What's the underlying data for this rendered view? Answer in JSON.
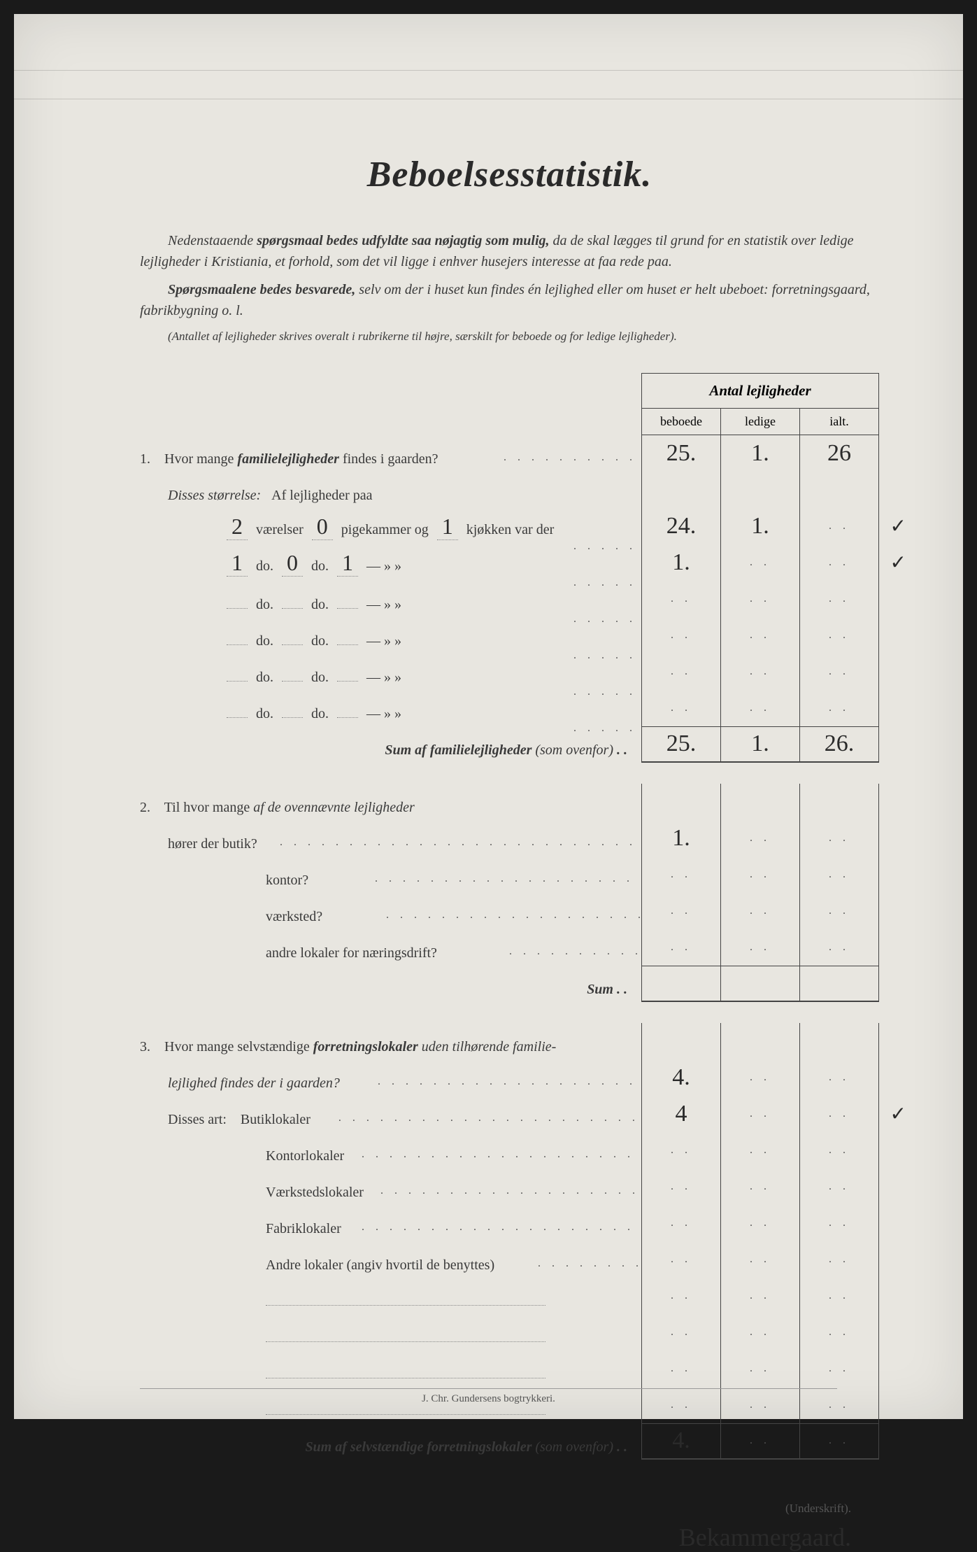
{
  "title": "Beboelsesstatistik.",
  "intro1_prefix": "Nedenstaaende ",
  "intro1_bold": "spørgsmaal bedes udfyldte saa nøjagtig som mulig,",
  "intro1_rest": " da de skal lægges til grund for en statistik over ledige lejligheder i Kristiania, et forhold, som det vil ligge i enhver husejers interesse at faa rede paa.",
  "intro2_bold": "Spørgsmaalene bedes besvarede,",
  "intro2_rest": " selv om der i huset kun findes én lejlighed eller om huset er helt ubeboet: forretningsgaard, fabrikbygning o. l.",
  "intro3": "(Antallet af lejligheder skrives overalt i rubrikerne til højre, særskilt for beboede og for ledige lejligheder).",
  "cols_title": "Antal lejligheder",
  "col1": "beboede",
  "col2": "ledige",
  "col3": "ialt.",
  "q1_num": "1.",
  "q1_text": "Hvor mange ",
  "q1_bold": "familielejligheder",
  "q1_rest": " findes i gaarden?",
  "q1_sub": "Disses størrelse:",
  "q1_sub_rest": "Af lejligheder paa",
  "size_rows": [
    {
      "v": "2",
      "p": "0",
      "k": "1",
      "label_v": "værelser",
      "label_p": "pigekammer og",
      "label_k": "kjøkken var der",
      "c1": "24.",
      "c2": "1.",
      "c3": "",
      "check": "✓"
    },
    {
      "v": "1",
      "p": "0",
      "k": "1",
      "label_v": "do.",
      "label_p": "do.",
      "label_k": "—   »    »",
      "c1": "1.",
      "c2": "",
      "c3": "",
      "check": "✓"
    },
    {
      "v": "",
      "p": "",
      "k": "",
      "label_v": "do.",
      "label_p": "do.",
      "label_k": "—   »    »",
      "c1": "",
      "c2": "",
      "c3": "",
      "check": ""
    },
    {
      "v": "",
      "p": "",
      "k": "",
      "label_v": "do.",
      "label_p": "do.",
      "label_k": "—   »    »",
      "c1": "",
      "c2": "",
      "c3": "",
      "check": ""
    },
    {
      "v": "",
      "p": "",
      "k": "",
      "label_v": "do.",
      "label_p": "do.",
      "label_k": "—   »    »",
      "c1": "",
      "c2": "",
      "c3": "",
      "check": ""
    },
    {
      "v": "",
      "p": "",
      "k": "",
      "label_v": "do.",
      "label_p": "do.",
      "label_k": "—   »    »",
      "c1": "",
      "c2": "",
      "c3": "",
      "check": ""
    }
  ],
  "q1_c1": "25.",
  "q1_c2": "1.",
  "q1_c3": "26",
  "sum1_label": "Sum af familielejligheder",
  "sum1_paren": "(som ovenfor)",
  "sum1_c1": "25.",
  "sum1_c2": "1.",
  "sum1_c3": "26.",
  "q2_num": "2.",
  "q2_text": "Til hvor mange ",
  "q2_it": "af de ovennævnte lejligheder",
  "q2_rows": [
    {
      "label": "hører der butik?",
      "c1": "1.",
      "c2": "",
      "c3": ""
    },
    {
      "label": "kontor?",
      "c1": "",
      "c2": "",
      "c3": ""
    },
    {
      "label": "værksted?",
      "c1": "",
      "c2": "",
      "c3": ""
    },
    {
      "label": "andre lokaler for næringsdrift?",
      "c1": "",
      "c2": "",
      "c3": ""
    }
  ],
  "sum2_label": "Sum",
  "q3_num": "3.",
  "q3_text": "Hvor mange selvstændige ",
  "q3_bold": "forretningslokaler",
  "q3_rest": " uden tilhørende familie-",
  "q3_line2": "lejlighed findes der i gaarden?",
  "q3_c1": "4.",
  "q3_sub": "Disses art:",
  "q3_rows": [
    {
      "label": "Butiklokaler",
      "c1": "4",
      "c2": "",
      "c3": "",
      "check": "✓"
    },
    {
      "label": "Kontorlokaler",
      "c1": "",
      "c2": "",
      "c3": "",
      "check": ""
    },
    {
      "label": "Værkstedslokaler",
      "c1": "",
      "c2": "",
      "c3": "",
      "check": ""
    },
    {
      "label": "Fabriklokaler",
      "c1": "",
      "c2": "",
      "c3": "",
      "check": ""
    },
    {
      "label": "Andre lokaler (angiv hvortil de benyttes)",
      "c1": "",
      "c2": "",
      "c3": "",
      "check": ""
    }
  ],
  "blank_rows": 4,
  "sum3_label": "Sum af selvstændige forretningslokaler",
  "sum3_paren": "(som ovenfor)",
  "sum3_c1": "4.",
  "sig_label": "(Underskrift).",
  "signature": "Bekammergaard.",
  "footer": "J. Chr. Gundersens bogtrykkeri."
}
